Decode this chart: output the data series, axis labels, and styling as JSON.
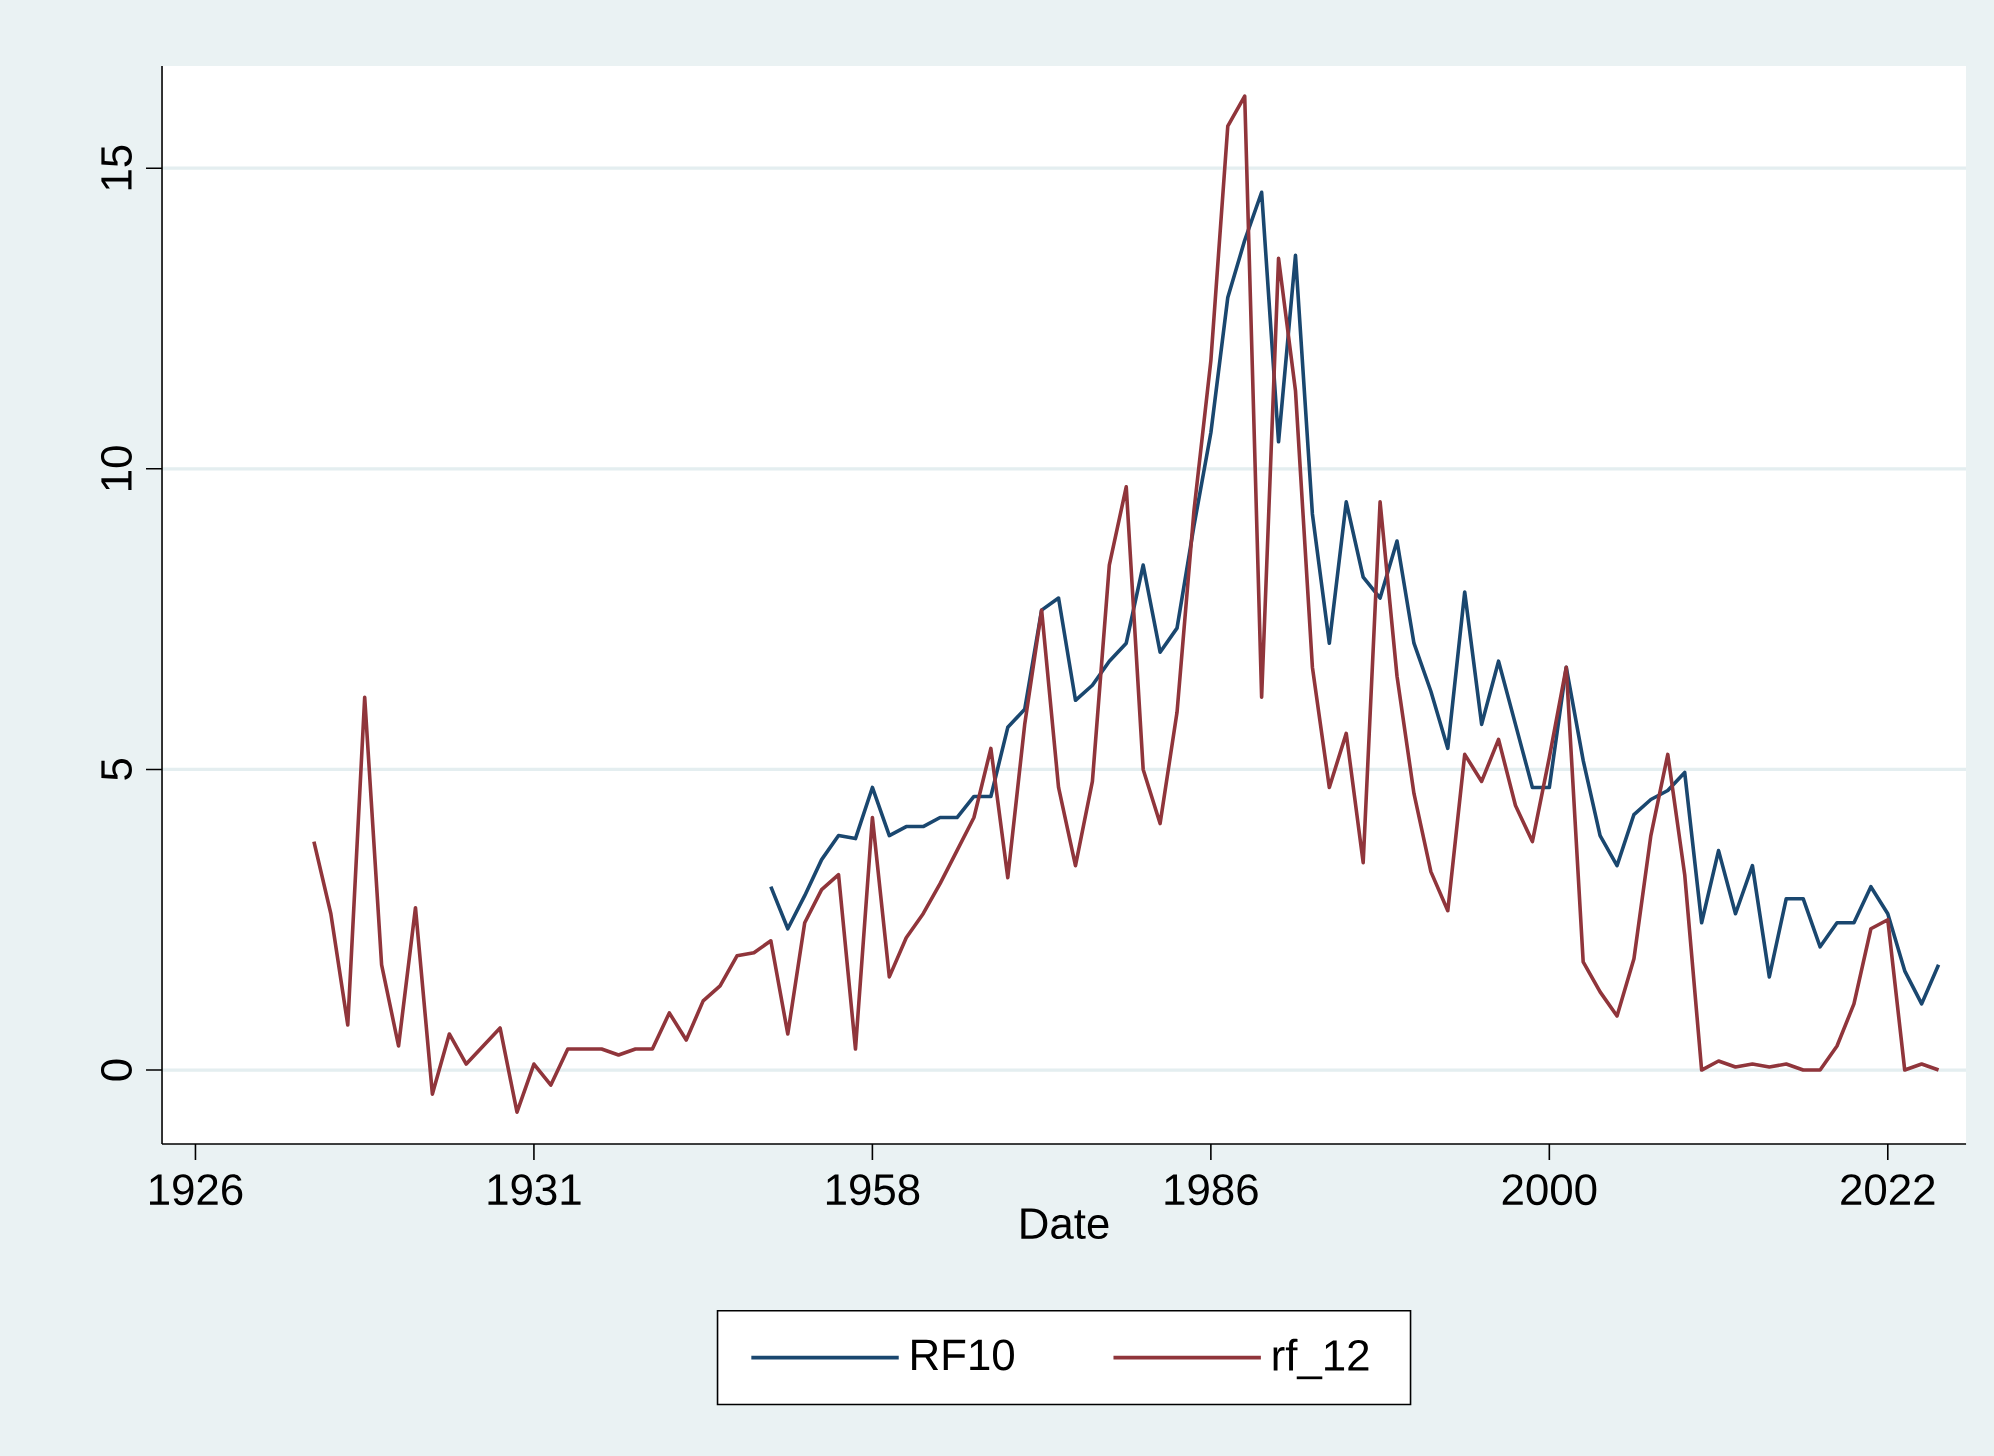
{
  "chart_data": {
    "type": "line",
    "xlabel": "Date",
    "categories": [
      "1926",
      null,
      null,
      null,
      null,
      null,
      null,
      null,
      null,
      null,
      null,
      null,
      null,
      null,
      null,
      null,
      null,
      null,
      null,
      null,
      "1931",
      null,
      null,
      null,
      null,
      null,
      null,
      null,
      null,
      null,
      null,
      null,
      null,
      null,
      null,
      null,
      null,
      null,
      null,
      null,
      "1958",
      null,
      null,
      null,
      null,
      null,
      null,
      null,
      null,
      null,
      null,
      null,
      null,
      null,
      null,
      null,
      null,
      null,
      null,
      null,
      "1986",
      null,
      null,
      null,
      null,
      null,
      null,
      null,
      null,
      null,
      null,
      null,
      null,
      null,
      null,
      null,
      null,
      null,
      null,
      null,
      "2000",
      null,
      null,
      null,
      null,
      null,
      null,
      null,
      null,
      null,
      null,
      null,
      null,
      null,
      null,
      null,
      null,
      null,
      null,
      null,
      "2022",
      null,
      null,
      null,
      null
    ],
    "ylim": [
      -1.23,
      16.7
    ],
    "yticks": [
      0,
      5,
      10,
      15
    ],
    "grid": "y",
    "legend": "bottom",
    "line_style": "solid",
    "marker": "none",
    "series": [
      {
        "name": "RF10",
        "color": "#1a476f",
        "values": [
          null,
          null,
          null,
          null,
          null,
          null,
          null,
          null,
          null,
          null,
          null,
          null,
          null,
          null,
          null,
          null,
          null,
          null,
          null,
          null,
          null,
          null,
          null,
          null,
          null,
          null,
          null,
          null,
          null,
          null,
          null,
          null,
          null,
          null,
          3.05,
          2.35,
          2.9,
          3.5,
          3.9,
          3.85,
          4.7,
          3.9,
          4.05,
          4.05,
          4.2,
          4.2,
          4.55,
          4.55,
          5.7,
          6.0,
          7.65,
          7.85,
          6.15,
          6.4,
          6.8,
          7.1,
          8.4,
          6.95,
          7.35,
          9.05,
          10.6,
          12.85,
          13.8,
          14.6,
          10.45,
          13.55,
          9.25,
          7.1,
          9.45,
          8.2,
          7.85,
          8.8,
          7.1,
          6.3,
          5.35,
          7.95,
          5.75,
          6.8,
          5.75,
          4.7,
          4.7,
          6.7,
          5.15,
          3.9,
          3.4,
          4.25,
          4.5,
          4.65,
          4.95,
          2.45,
          3.65,
          2.6,
          3.4,
          1.55,
          2.85,
          2.85,
          2.05,
          2.45,
          2.45,
          3.05,
          2.6,
          1.65,
          1.1,
          1.75,
          null
        ]
      },
      {
        "name": "rf_12",
        "color": "#90353b",
        "values": [
          null,
          null,
          null,
          null,
          null,
          null,
          null,
          3.8,
          2.6,
          0.75,
          6.2,
          1.75,
          0.4,
          2.7,
          -0.4,
          0.6,
          0.1,
          0.4,
          0.7,
          -0.7,
          0.1,
          -0.25,
          0.35,
          0.35,
          0.35,
          0.25,
          0.35,
          0.35,
          0.95,
          0.5,
          1.15,
          1.4,
          1.9,
          1.95,
          2.15,
          0.6,
          2.45,
          3.0,
          3.25,
          0.35,
          4.2,
          1.55,
          2.2,
          2.6,
          3.1,
          3.65,
          4.2,
          5.35,
          3.2,
          5.75,
          7.65,
          4.7,
          3.4,
          4.8,
          8.4,
          9.7,
          5.0,
          4.1,
          5.95,
          9.3,
          11.8,
          15.7,
          16.2,
          6.2,
          13.5,
          11.3,
          6.7,
          4.7,
          5.6,
          3.45,
          9.45,
          6.55,
          4.6,
          3.3,
          2.65,
          5.25,
          4.8,
          5.5,
          4.4,
          3.8,
          5.2,
          6.7,
          1.8,
          1.3,
          0.9,
          1.85,
          3.9,
          5.25,
          3.25,
          0,
          0.15,
          0.05,
          0.1,
          0.05,
          0.1,
          0,
          0,
          0.4,
          1.1,
          2.35,
          2.5,
          0,
          0.1,
          0,
          null
        ]
      }
    ]
  }
}
